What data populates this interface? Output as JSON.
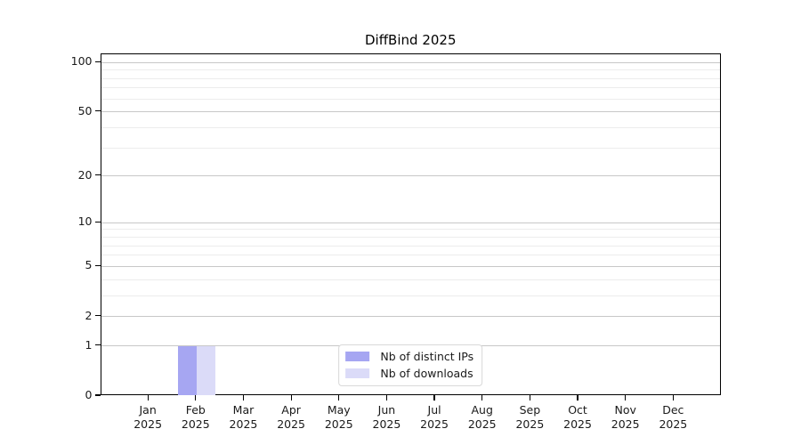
{
  "title": "DiffBind 2025",
  "chart_data": {
    "type": "bar",
    "title": "DiffBind 2025",
    "categories": [
      "Jan 2025",
      "Feb 2025",
      "Mar 2025",
      "Apr 2025",
      "May 2025",
      "Jun 2025",
      "Jul 2025",
      "Aug 2025",
      "Sep 2025",
      "Oct 2025",
      "Nov 2025",
      "Dec 2025"
    ],
    "series": [
      {
        "name": "Nb of distinct IPs",
        "color": "#a6a6f2",
        "values": [
          0,
          1,
          0,
          0,
          0,
          0,
          0,
          0,
          0,
          0,
          0,
          0
        ]
      },
      {
        "name": "Nb of downloads",
        "color": "#dbdbf8",
        "values": [
          0,
          1,
          0,
          0,
          0,
          0,
          0,
          0,
          0,
          0,
          0,
          0
        ]
      }
    ],
    "y_scale": "log1p",
    "ylim": [
      0,
      112
    ],
    "y_major_ticks": [
      0,
      1,
      2,
      5,
      10,
      20,
      50,
      100
    ],
    "y_minor_ticks": [
      3,
      4,
      6,
      7,
      8,
      9,
      30,
      40,
      60,
      70,
      80,
      90
    ],
    "grid": true,
    "legend_position": "lower center"
  },
  "colors": {
    "major_grid": "#c8c8c8",
    "minor_grid": "#ececec",
    "axis": "#000000",
    "text": "#1a1a1a",
    "background": "#ffffff"
  }
}
